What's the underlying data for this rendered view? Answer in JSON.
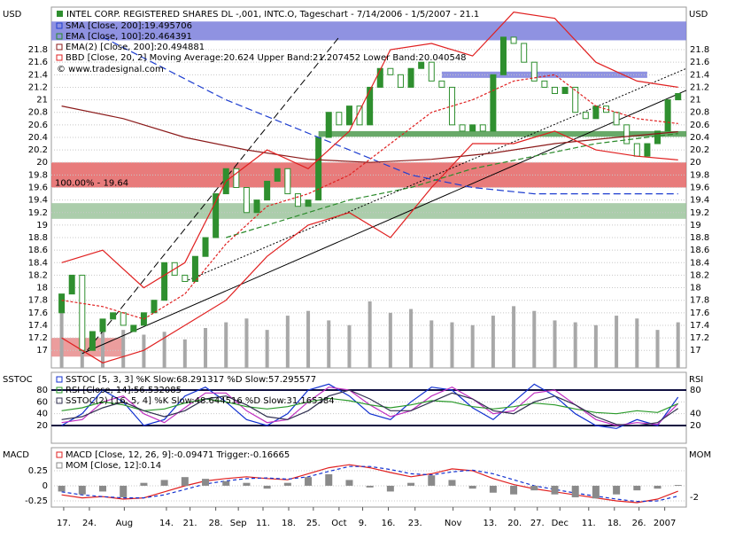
{
  "chart_data": [
    {
      "type": "candlestick",
      "left_label": "USD",
      "right_label": "USD",
      "title": "INTEL CORP. REGISTERED SHARES DL -,001, INTC.O, Tageschart - 7/14/2006 - 1/5/2007 - 21.1",
      "credit": "© www.tradesignal.com",
      "annotation": "100.00% - 19.64",
      "ylim": [
        16.72,
        22.48
      ],
      "yticks": [
        17,
        17.2,
        17.4,
        17.6,
        17.8,
        18,
        18.2,
        18.4,
        18.6,
        18.8,
        19,
        19.2,
        19.4,
        19.6,
        19.8,
        20,
        20.2,
        20.4,
        20.6,
        20.8,
        21,
        21.2,
        21.4,
        21.6,
        21.8
      ],
      "grid": true,
      "open": [
        17.6,
        17.9,
        18.2,
        17.0,
        17.3,
        17.5,
        17.6,
        17.3,
        17.4,
        17.6,
        17.8,
        18.4,
        18.2,
        18.1,
        18.5,
        18.8,
        19.5,
        19.9,
        19.6,
        19.2,
        19.4,
        19.7,
        19.9,
        19.5,
        19.3,
        19.4,
        20.4,
        20.8,
        20.6,
        20.9,
        20.6,
        21.2,
        21.5,
        21.4,
        21.2,
        21.5,
        21.6,
        21.3,
        21.2,
        20.6,
        20.5,
        20.6,
        20.5,
        21.4,
        22.0,
        21.9,
        21.6,
        21.3,
        21.2,
        21.1,
        21.2,
        20.8,
        20.7,
        20.9,
        20.8,
        20.6,
        20.3,
        20.1,
        20.3,
        20.5,
        21.0
      ],
      "close": [
        17.9,
        18.2,
        17.0,
        17.3,
        17.5,
        17.6,
        17.4,
        17.4,
        17.6,
        17.8,
        18.4,
        18.2,
        18.1,
        18.5,
        18.8,
        19.5,
        19.9,
        19.6,
        19.2,
        19.4,
        19.7,
        19.9,
        19.5,
        19.3,
        19.4,
        20.4,
        20.8,
        20.6,
        20.9,
        20.6,
        21.2,
        21.5,
        21.4,
        21.2,
        21.5,
        21.6,
        21.3,
        21.2,
        20.6,
        20.5,
        20.6,
        20.5,
        21.4,
        22.0,
        21.9,
        21.6,
        21.3,
        21.2,
        21.1,
        21.2,
        20.8,
        20.7,
        20.9,
        20.8,
        20.6,
        20.3,
        20.1,
        20.3,
        20.5,
        21.0,
        21.1
      ],
      "up_color": "#2f8f2f",
      "down_color": "#ffffff",
      "zones": [
        {
          "from": -1,
          "to": 60.8,
          "low": 21.95,
          "high": 22.25,
          "color": "#7b7fdc"
        },
        {
          "from": 37,
          "to": 57,
          "low": 21.35,
          "high": 21.45,
          "color": "#7b7fdc"
        },
        {
          "from": 25,
          "to": 60.8,
          "low": 20.41,
          "high": 20.5,
          "color": "#4e9a4e"
        },
        {
          "from": -1,
          "to": 60.8,
          "low": 19.6,
          "high": 20.0,
          "color": "#e46464"
        },
        {
          "from": -1,
          "to": 60.8,
          "low": 19.1,
          "high": 19.35,
          "color": "#9cc49c"
        },
        {
          "from": -1,
          "to": 6,
          "low": 16.9,
          "high": 17.2,
          "color": "#e88c8c"
        }
      ],
      "trendlines": [
        {
          "x1": 2,
          "y1": 16.95,
          "x2": 60.8,
          "y2": 21.15,
          "color": "#000000",
          "dash": "none"
        },
        {
          "x1": 2.5,
          "y1": 17.0,
          "x2": 27,
          "y2": 22.0,
          "color": "#000000",
          "dash": "8 4"
        },
        {
          "x1": 12,
          "y1": 18.1,
          "x2": 60.8,
          "y2": 21.5,
          "color": "#000000",
          "dash": "2 2"
        }
      ],
      "volume": {
        "color": "#a8a8a8",
        "x": [
          0,
          2,
          4,
          6,
          8,
          10,
          12,
          14,
          16,
          18,
          20,
          22,
          24,
          26,
          28,
          30,
          32,
          34,
          36,
          38,
          40,
          42,
          44,
          46,
          48,
          50,
          52,
          54,
          56,
          58,
          60
        ],
        "values": [
          60,
          45,
          50,
          40,
          35,
          38,
          30,
          42,
          48,
          52,
          40,
          55,
          60,
          50,
          45,
          70,
          58,
          62,
          50,
          48,
          45,
          55,
          65,
          60,
          50,
          48,
          45,
          55,
          52,
          40,
          48
        ]
      },
      "series": [
        {
          "name": "SMA [Close, 200]:19.495706",
          "color": "#1f3fd0",
          "dash": "8 4",
          "x": [
            4,
            10,
            16,
            22,
            28,
            34,
            40,
            46,
            52,
            60
          ],
          "values": [
            22.0,
            21.5,
            21.0,
            20.6,
            20.2,
            19.8,
            19.6,
            19.5,
            19.5,
            19.5
          ]
        },
        {
          "name": "EMA [Close, 100]:20.464391",
          "color": "#2a8a2a",
          "dash": "6 3",
          "x": [
            16,
            22,
            28,
            34,
            40,
            46,
            52,
            60
          ],
          "values": [
            18.8,
            19.1,
            19.4,
            19.6,
            19.9,
            20.1,
            20.3,
            20.46
          ]
        },
        {
          "name": "EMA(2) [Close, 200]:20.494881",
          "color": "#8b1a1a",
          "dash": "none",
          "x": [
            0,
            6,
            12,
            18,
            24,
            30,
            36,
            42,
            48,
            54,
            60
          ],
          "values": [
            20.9,
            20.7,
            20.4,
            20.2,
            20.05,
            20.0,
            20.05,
            20.15,
            20.3,
            20.4,
            20.49
          ]
        },
        {
          "name": "BBD [Close, 20, 2] Moving Average:20.624 Upper Band:21.207452 Lower Band:20.040548",
          "color": "#e02020",
          "dash": "none",
          "x": [
            0,
            4,
            8,
            12,
            16,
            20,
            24,
            28,
            32,
            36,
            40,
            44,
            48,
            52,
            56,
            60
          ],
          "values": [
            18.4,
            18.6,
            18.0,
            18.4,
            19.7,
            20.2,
            19.9,
            20.5,
            21.8,
            21.9,
            21.7,
            22.4,
            22.3,
            21.6,
            21.3,
            21.2
          ]
        },
        {
          "color": "#e02020",
          "dash": "none",
          "x": [
            0,
            4,
            8,
            12,
            16,
            20,
            24,
            28,
            32,
            36,
            40,
            44,
            48,
            52,
            56,
            60
          ],
          "values": [
            17.2,
            16.8,
            17.0,
            17.4,
            17.8,
            18.5,
            19.0,
            19.2,
            18.8,
            19.6,
            20.3,
            20.3,
            20.5,
            20.2,
            20.1,
            20.04
          ]
        },
        {
          "color": "#e02020",
          "dash": "3 2",
          "x": [
            0,
            4,
            8,
            12,
            16,
            20,
            24,
            28,
            32,
            36,
            40,
            44,
            48,
            52,
            56,
            60
          ],
          "values": [
            17.8,
            17.7,
            17.5,
            17.9,
            18.7,
            19.3,
            19.5,
            19.8,
            20.3,
            20.8,
            21.0,
            21.3,
            21.4,
            20.9,
            20.7,
            20.62
          ]
        }
      ]
    },
    {
      "type": "line",
      "left_label": "SSTOC",
      "right_label": "RSI",
      "ylim": [
        -10,
        110
      ],
      "yticks": [
        20,
        40,
        60,
        80
      ],
      "y2ticks": [
        20,
        40,
        80
      ],
      "ref_lines": [
        80,
        20
      ],
      "x": [
        0,
        2,
        4,
        6,
        8,
        10,
        12,
        14,
        16,
        18,
        20,
        22,
        24,
        26,
        28,
        30,
        32,
        34,
        36,
        38,
        40,
        42,
        44,
        46,
        48,
        50,
        52,
        54,
        56,
        58,
        60
      ],
      "series": [
        {
          "name": "SSTOC [5, 3, 3] %K Slow:68.291317 %D Slow:57.295577",
          "color": "#1030d0",
          "values": [
            20,
            40,
            80,
            60,
            20,
            30,
            70,
            85,
            60,
            30,
            20,
            40,
            80,
            90,
            70,
            40,
            30,
            60,
            85,
            80,
            50,
            30,
            60,
            90,
            70,
            40,
            20,
            15,
            30,
            20,
            68
          ]
        },
        {
          "color": "#c030c0",
          "values": [
            25,
            30,
            60,
            70,
            40,
            25,
            50,
            75,
            75,
            45,
            25,
            30,
            60,
            85,
            80,
            55,
            35,
            45,
            70,
            85,
            65,
            40,
            45,
            75,
            80,
            55,
            30,
            20,
            25,
            22,
            57
          ]
        },
        {
          "name": "RSI [Close, 14]:56.532085",
          "color": "#2a9a2a",
          "values": [
            45,
            50,
            60,
            55,
            45,
            48,
            58,
            65,
            60,
            52,
            48,
            52,
            60,
            66,
            62,
            55,
            50,
            55,
            62,
            60,
            52,
            48,
            52,
            58,
            55,
            48,
            42,
            40,
            45,
            42,
            57
          ]
        },
        {
          "name": "SSTOC(2) [16, 5, 4] %K Slow:48.644516 %D Slow:31.165384",
          "color": "#303050",
          "values": [
            30,
            35,
            50,
            60,
            45,
            35,
            45,
            65,
            70,
            55,
            35,
            30,
            45,
            70,
            80,
            65,
            45,
            45,
            60,
            75,
            65,
            45,
            40,
            60,
            70,
            55,
            35,
            22,
            20,
            25,
            49
          ]
        }
      ]
    },
    {
      "type": "line",
      "left_label": "MACD",
      "right_label": "MOM",
      "ylim": [
        -0.353,
        0.632
      ],
      "yticks": [
        -0.25,
        0,
        0.25
      ],
      "y2lim": [
        -3.7,
        6.6
      ],
      "y2ticks": [
        -2
      ],
      "x": [
        0,
        2,
        4,
        6,
        8,
        10,
        12,
        14,
        16,
        18,
        20,
        22,
        24,
        26,
        28,
        30,
        32,
        34,
        36,
        38,
        40,
        42,
        44,
        46,
        48,
        50,
        52,
        54,
        56,
        58,
        60
      ],
      "xlim": [
        -1,
        60.8
      ],
      "xticks": [
        {
          "value": 0.2,
          "label": "17."
        },
        {
          "value": 2.7,
          "label": "24."
        },
        {
          "value": 6.1,
          "label": "Aug"
        },
        {
          "value": 10.2,
          "label": "14."
        },
        {
          "value": 12.5,
          "label": "21."
        },
        {
          "value": 15.0,
          "label": "28."
        },
        {
          "value": 17.2,
          "label": "Sep"
        },
        {
          "value": 19.6,
          "label": "11."
        },
        {
          "value": 22.1,
          "label": "18."
        },
        {
          "value": 24.5,
          "label": "25."
        },
        {
          "value": 27.0,
          "label": "Oct"
        },
        {
          "value": 29.3,
          "label": "9."
        },
        {
          "value": 31.8,
          "label": "16."
        },
        {
          "value": 34.4,
          "label": "23."
        },
        {
          "value": 38.1,
          "label": "Nov"
        },
        {
          "value": 41.7,
          "label": "13."
        },
        {
          "value": 44.1,
          "label": "20."
        },
        {
          "value": 46.3,
          "label": "27."
        },
        {
          "value": 48.5,
          "label": "Dec"
        },
        {
          "value": 51.3,
          "label": "11."
        },
        {
          "value": 53.8,
          "label": "18."
        },
        {
          "value": 56.2,
          "label": "26."
        },
        {
          "value": 58.7,
          "label": "2007"
        }
      ],
      "series": [
        {
          "name": "MACD [Close, 12, 26, 9]:-0.09471 Trigger:-0.16665",
          "color": "#e02020",
          "values": [
            -0.15,
            -0.2,
            -0.18,
            -0.22,
            -0.2,
            -0.1,
            0.0,
            0.08,
            0.12,
            0.15,
            0.12,
            0.1,
            0.2,
            0.3,
            0.35,
            0.3,
            0.22,
            0.15,
            0.2,
            0.28,
            0.25,
            0.12,
            0.02,
            -0.05,
            -0.1,
            -0.15,
            -0.2,
            -0.25,
            -0.28,
            -0.22,
            -0.09
          ]
        },
        {
          "color": "#1030d0",
          "dash": "4 3",
          "values": [
            -0.1,
            -0.15,
            -0.18,
            -0.2,
            -0.2,
            -0.15,
            -0.06,
            0.03,
            0.08,
            0.12,
            0.13,
            0.11,
            0.15,
            0.24,
            0.32,
            0.32,
            0.27,
            0.2,
            0.18,
            0.23,
            0.26,
            0.2,
            0.1,
            0.0,
            -0.06,
            -0.12,
            -0.17,
            -0.22,
            -0.26,
            -0.25,
            -0.17
          ]
        },
        {
          "name": "MOM [Close, 12]:0.14",
          "color": "#8a8a8a",
          "axis": "y2",
          "bars": true,
          "values": [
            -1,
            -1.5,
            -1,
            -2,
            0.5,
            1,
            1.5,
            1.2,
            0.8,
            0.5,
            -0.5,
            0.5,
            1.5,
            2,
            1,
            -0.3,
            -1,
            0.5,
            1.8,
            1,
            -0.5,
            -1.2,
            -1.5,
            -0.8,
            -1.5,
            -2,
            -2.2,
            -1.5,
            -0.8,
            -0.5,
            0.14
          ]
        }
      ]
    }
  ]
}
